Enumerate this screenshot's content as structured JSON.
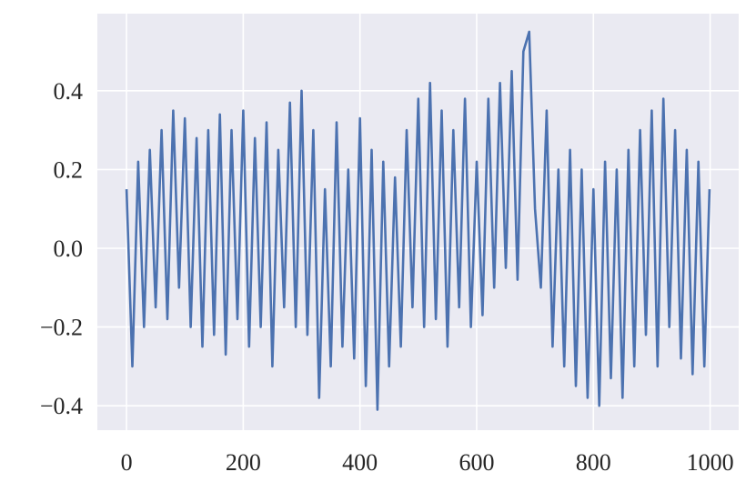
{
  "chart_data": {
    "type": "line",
    "title": "",
    "xlabel": "",
    "ylabel": "",
    "xlim": [
      -50,
      1049
    ],
    "ylim": [
      -0.462,
      0.596
    ],
    "grid": true,
    "legend": "none",
    "colors": {
      "background": "#eaeaf2",
      "grid": "#ffffff",
      "line": "#4c72b0"
    },
    "xticks": [
      0,
      200,
      400,
      600,
      800,
      1000
    ],
    "xtick_labels": [
      "0",
      "200",
      "400",
      "600",
      "800",
      "1000"
    ],
    "yticks": [
      -0.4,
      -0.2,
      0.0,
      0.2,
      0.4
    ],
    "ytick_labels": [
      "−0.4",
      "−0.2",
      "0.0",
      "0.2",
      "0.4"
    ],
    "series": [
      {
        "x": [
          0,
          10,
          20,
          30,
          40,
          50,
          60,
          70,
          80,
          90,
          100,
          110,
          120,
          130,
          140,
          150,
          160,
          170,
          180,
          190,
          200,
          210,
          220,
          230,
          240,
          250,
          260,
          270,
          280,
          290,
          300,
          310,
          320,
          330,
          340,
          350,
          360,
          370,
          380,
          390,
          400,
          410,
          420,
          430,
          440,
          450,
          460,
          470,
          480,
          490,
          500,
          510,
          520,
          530,
          540,
          550,
          560,
          570,
          580,
          590,
          600,
          610,
          620,
          630,
          640,
          650,
          660,
          670,
          680,
          690,
          700,
          710,
          720,
          730,
          740,
          750,
          760,
          770,
          780,
          790,
          800,
          810,
          820,
          830,
          840,
          850,
          860,
          870,
          880,
          890,
          900,
          910,
          920,
          930,
          940,
          950,
          960,
          970,
          980,
          990,
          999
        ],
        "values": [
          0.15,
          -0.3,
          0.22,
          -0.2,
          0.25,
          -0.15,
          0.3,
          -0.18,
          0.35,
          -0.1,
          0.33,
          -0.2,
          0.28,
          -0.25,
          0.3,
          -0.22,
          0.34,
          -0.27,
          0.3,
          -0.18,
          0.35,
          -0.25,
          0.28,
          -0.2,
          0.32,
          -0.3,
          0.25,
          -0.15,
          0.37,
          -0.2,
          0.4,
          -0.22,
          0.3,
          -0.38,
          0.15,
          -0.3,
          0.32,
          -0.25,
          0.2,
          -0.28,
          0.33,
          -0.35,
          0.25,
          -0.41,
          0.22,
          -0.3,
          0.18,
          -0.25,
          0.3,
          -0.15,
          0.38,
          -0.2,
          0.42,
          -0.18,
          0.35,
          -0.25,
          0.3,
          -0.15,
          0.38,
          -0.2,
          0.22,
          -0.17,
          0.38,
          -0.1,
          0.42,
          -0.05,
          0.45,
          -0.08,
          0.5,
          0.55,
          0.1,
          -0.1,
          0.35,
          -0.25,
          0.2,
          -0.3,
          0.25,
          -0.35,
          0.2,
          -0.38,
          0.15,
          -0.4,
          0.22,
          -0.33,
          0.2,
          -0.38,
          0.25,
          -0.3,
          0.3,
          -0.22,
          0.35,
          -0.3,
          0.38,
          -0.2,
          0.3,
          -0.28,
          0.25,
          -0.32,
          0.22,
          -0.3,
          0.15
        ]
      }
    ]
  }
}
